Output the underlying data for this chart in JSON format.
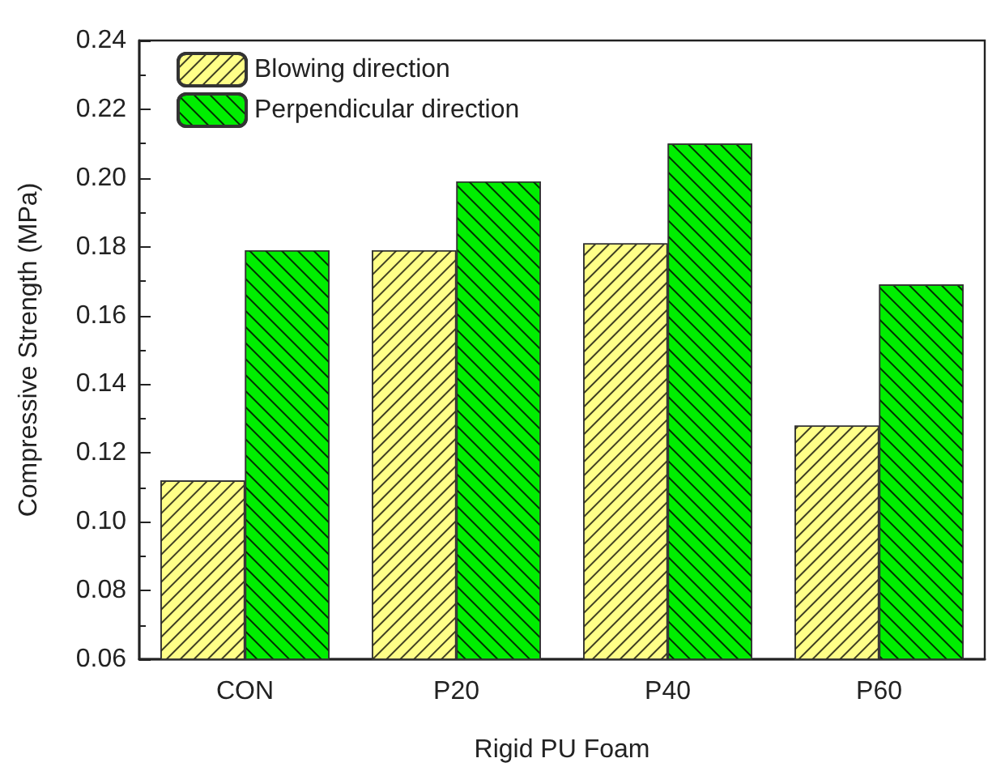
{
  "chart_data": {
    "type": "bar",
    "xlabel": "Rigid PU Foam",
    "ylabel": "Compressive Strength (MPa)",
    "categories": [
      "CON",
      "P20",
      "P40",
      "P60"
    ],
    "series": [
      {
        "name": "Blowing direction",
        "color": "#ffff88",
        "values": [
          0.112,
          0.179,
          0.181,
          0.128
        ]
      },
      {
        "name": "Perpendicular direction",
        "color": "#00ee00",
        "values": [
          0.179,
          0.199,
          0.21,
          0.169
        ]
      }
    ],
    "ylim": [
      0.06,
      0.24
    ],
    "yticks": [
      0.06,
      0.08,
      {
        "value": 0.1,
        "label": "0.10"
      },
      0.12,
      0.14,
      0.16,
      0.18,
      {
        "value": 0.2,
        "label": "0.20"
      },
      0.22,
      0.24
    ],
    "grid": false,
    "legend": "top left"
  }
}
